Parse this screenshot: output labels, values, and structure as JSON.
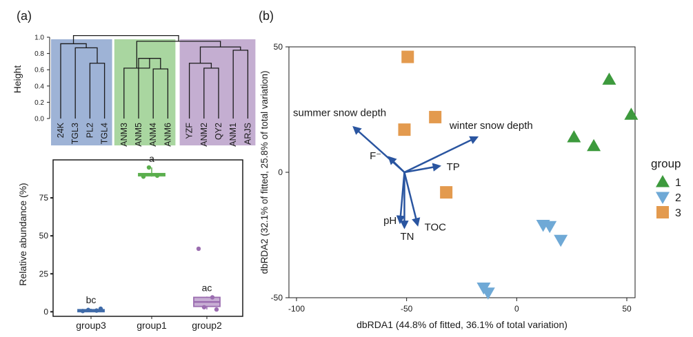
{
  "colors": {
    "group1": "#3d9a3d",
    "group2": "#6fa9d6",
    "group3": "#e39a4e",
    "cluster_a": "#9eb3d6",
    "cluster_b": "#a9d6a0",
    "cluster_c": "#c4aed1",
    "box_group1": "#5aae4c",
    "box_group2": "#9b6db0",
    "box_group3": "#3e6aa8",
    "arrow": "#2a55a0"
  },
  "panel_a_label": "(a)",
  "panel_b_label": "(b)",
  "chart_data": [
    {
      "type": "dendrogram",
      "ylabel": "Height",
      "ylim": [
        0.0,
        1.0
      ],
      "yticks": [
        "1.0",
        "0.8",
        "0.6",
        "0.4",
        "0.2",
        "0.0"
      ],
      "leaves": [
        "24K",
        "TGL3",
        "PL2",
        "TGL4",
        "ANM3",
        "ANM5",
        "ANM4",
        "ANM6",
        "YZF",
        "ANM2",
        "QY2",
        "ANM1",
        "ARJS"
      ],
      "clusters": [
        {
          "leaves": [
            "24K",
            "TGL3",
            "PL2",
            "TGL4"
          ],
          "color": "cluster_a"
        },
        {
          "leaves": [
            "ANM3",
            "ANM5",
            "ANM4",
            "ANM6"
          ],
          "color": "cluster_b"
        },
        {
          "leaves": [
            "YZF",
            "ANM2",
            "QY2",
            "ANM1",
            "ARJS"
          ],
          "color": "cluster_c"
        }
      ],
      "merges": [
        {
          "left": 2,
          "right": 3,
          "height": 0.68
        },
        {
          "left": 1,
          "right": "m0",
          "height": 0.87
        },
        {
          "left": 0,
          "right": "m1",
          "height": 0.92
        },
        {
          "left": 6,
          "right": 7,
          "height": 0.61
        },
        {
          "left": 5,
          "right": "m3",
          "height": 0.74
        },
        {
          "left": 4,
          "right": "m4",
          "height": 0.62
        },
        {
          "left": 9,
          "right": 10,
          "height": 0.62
        },
        {
          "left": 8,
          "right": "m6",
          "height": 0.68
        },
        {
          "left": 11,
          "right": 12,
          "height": 0.84
        },
        {
          "left": "m7",
          "right": "m8",
          "height": 0.88
        },
        {
          "left": "m5",
          "right": "m9",
          "height": 0.95
        },
        {
          "left": "m2",
          "right": "m10",
          "height": 1.02
        }
      ]
    },
    {
      "type": "box",
      "ylabel": "Relative abundance (%)",
      "ylim": [
        -3,
        100
      ],
      "yticks": [
        0,
        25,
        50,
        75
      ],
      "categories": [
        "group3",
        "group1",
        "group2"
      ],
      "series": [
        {
          "category": "group3",
          "min": 0.5,
          "q1": 0.6,
          "median": 1.0,
          "q3": 1.4,
          "max": 2.0,
          "points": [
            0.5,
            0.8,
            1.2,
            2.0
          ],
          "letter": "bc",
          "color": "box_group3"
        },
        {
          "category": "group1",
          "min": 89.0,
          "q1": 89.5,
          "median": 90.5,
          "q3": 91.0,
          "max": 95.0,
          "points": [
            89.0,
            89.6,
            95.0
          ],
          "letter": "a",
          "color": "box_group1"
        },
        {
          "category": "group2",
          "min": 1.5,
          "q1": 3.5,
          "median": 6.5,
          "q3": 9.5,
          "max": 10.0,
          "points": [
            41.5,
            9.5,
            3.0,
            1.5
          ],
          "letter": "ac",
          "color": "box_group2"
        }
      ]
    },
    {
      "type": "scatter",
      "xlabel": "dbRDA1 (44.8% of fitted, 36.1% of total variation)",
      "ylabel": "dbRDA2 (32.1% of fitted, 25.8% of total variation)",
      "xlim": [
        -100,
        60
      ],
      "ylim": [
        -50,
        50
      ],
      "xticks": [
        -100,
        -50,
        0,
        50
      ],
      "yticks": [
        -50,
        0,
        50
      ],
      "legend_title": "group",
      "legend_position": "right",
      "series": [
        {
          "name": "1",
          "marker": "triangle-up",
          "color": "group1",
          "points": [
            [
              42,
              37
            ],
            [
              52,
              23
            ],
            [
              26,
              14
            ],
            [
              35,
              10.5
            ]
          ]
        },
        {
          "name": "2",
          "marker": "triangle-down",
          "color": "group2",
          "points": [
            [
              12,
              -21
            ],
            [
              15,
              -21.5
            ],
            [
              20,
              -27
            ],
            [
              -15,
              -46
            ],
            [
              -13,
              -48
            ]
          ]
        },
        {
          "name": "3",
          "marker": "square",
          "color": "group3",
          "points": [
            [
              -49.5,
              46
            ],
            [
              -37,
              22
            ],
            [
              -51,
              17
            ],
            [
              -32,
              -8
            ]
          ]
        }
      ],
      "vectors": [
        {
          "label": "summer snow depth",
          "x": -74,
          "y": 18
        },
        {
          "label": "winter snow depth",
          "x": -18,
          "y": 14
        },
        {
          "label": "F⁻",
          "x": -58,
          "y": 6
        },
        {
          "label": "TP",
          "x": -35,
          "y": 2.5
        },
        {
          "label": "pH",
          "x": -53,
          "y": -20
        },
        {
          "label": "TN",
          "x": -51,
          "y": -22
        },
        {
          "label": "TOC",
          "x": -45,
          "y": -21
        }
      ],
      "vector_origin": [
        -51,
        0
      ]
    }
  ]
}
